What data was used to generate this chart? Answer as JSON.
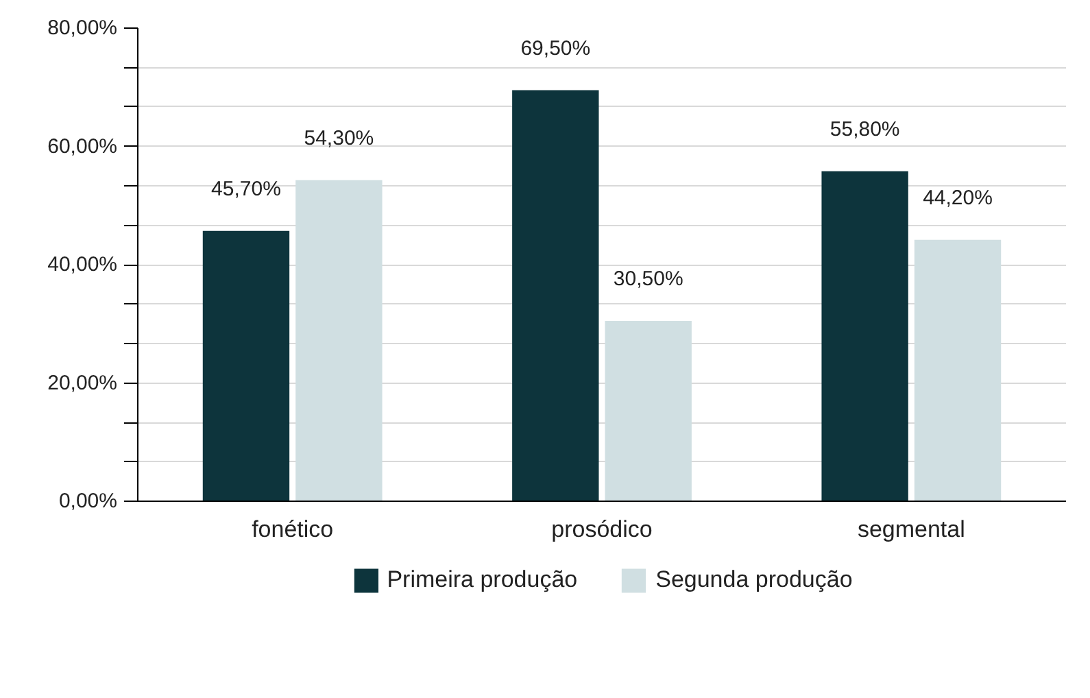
{
  "chart_data": {
    "type": "bar",
    "categories": [
      "fonético",
      "prosódico",
      "segmental"
    ],
    "series": [
      {
        "name": "Primeira produção",
        "color": "#0d343c",
        "values": [
          45.7,
          69.5,
          55.8
        ],
        "value_labels": [
          "45,70%",
          "69,50%",
          "55,80%"
        ]
      },
      {
        "name": "Segunda produção",
        "color": "#d0dfe2",
        "values": [
          54.3,
          30.5,
          44.2
        ],
        "value_labels": [
          "54,30%",
          "30,50%",
          "44,20%"
        ]
      }
    ],
    "ylim": [
      0,
      80
    ],
    "yticks": [
      {
        "value": 0,
        "label": "0,00%"
      },
      {
        "value": 6.67,
        "label": null
      },
      {
        "value": 13.33,
        "label": null
      },
      {
        "value": 20,
        "label": "20,00%"
      },
      {
        "value": 26.67,
        "label": null
      },
      {
        "value": 33.33,
        "label": null
      },
      {
        "value": 40,
        "label": "40,00%"
      },
      {
        "value": 46.67,
        "label": null
      },
      {
        "value": 53.33,
        "label": null
      },
      {
        "value": 60,
        "label": "60,00%"
      },
      {
        "value": 66.67,
        "label": null
      },
      {
        "value": 73.33,
        "label": null
      },
      {
        "value": 80,
        "label": "80,00%"
      }
    ],
    "grid": "y",
    "legend": "bottom"
  }
}
